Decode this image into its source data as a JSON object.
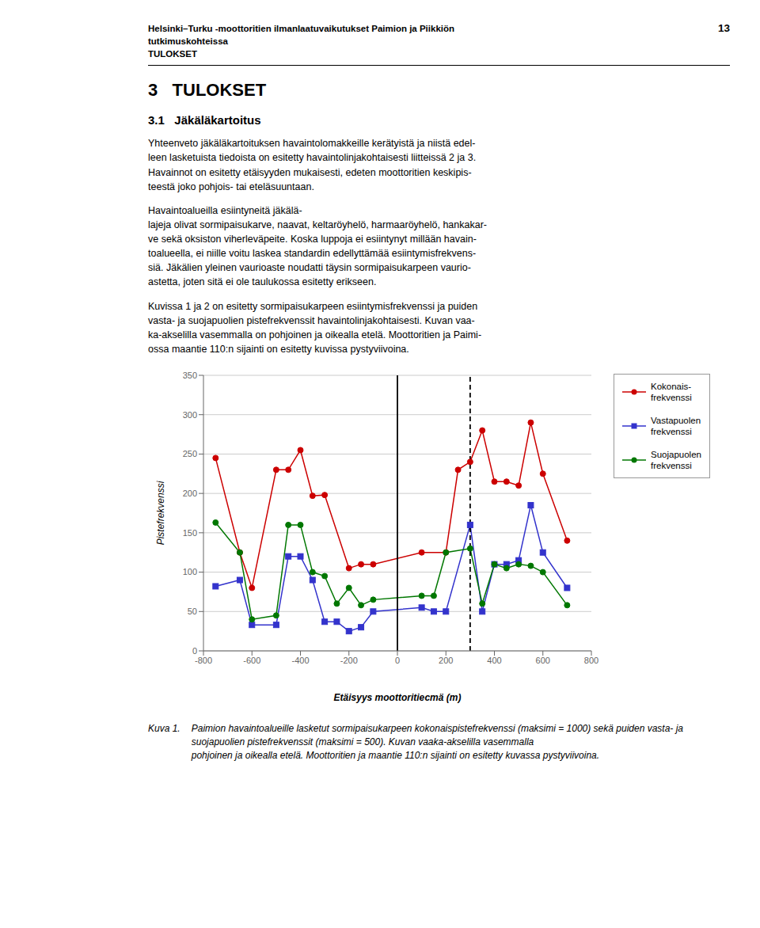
{
  "chart_data": {
    "type": "line",
    "xlabel": "Etäisyys moottoritiестä (m)",
    "ylabel": "Pistefrekvenssi",
    "xlim": [
      -800,
      800
    ],
    "ylim": [
      0,
      350
    ],
    "xticks": [
      -800,
      -600,
      -400,
      -200,
      0,
      200,
      400,
      600,
      800
    ],
    "yticks": [
      0,
      50,
      100,
      150,
      200,
      250,
      300,
      350
    ],
    "grid": "y",
    "legend": "right",
    "series": [
      {
        "name": "Kokonais-\nfrekvenssi",
        "color": "#cc0000",
        "marker": "circle",
        "x": [
          -750,
          -650,
          -600,
          -500,
          -450,
          -400,
          -350,
          -300,
          -200,
          -150,
          -100,
          100,
          200,
          250,
          300,
          350,
          400,
          450,
          500,
          550,
          600,
          700
        ],
        "values": [
          245,
          125,
          80,
          230,
          230,
          255,
          197,
          198,
          105,
          110,
          110,
          125,
          125,
          230,
          240,
          280,
          215,
          215,
          210,
          290,
          225,
          140
        ]
      },
      {
        "name": "Vastapuolen\nfrekvenssi",
        "color": "#3333cc",
        "marker": "square",
        "x": [
          -750,
          -650,
          -600,
          -500,
          -450,
          -400,
          -350,
          -300,
          -250,
          -200,
          -150,
          -100,
          100,
          150,
          200,
          300,
          350,
          400,
          450,
          500,
          550,
          600,
          700
        ],
        "values": [
          82,
          90,
          33,
          33,
          120,
          120,
          90,
          37,
          37,
          25,
          30,
          50,
          55,
          50,
          50,
          160,
          50,
          110,
          110,
          115,
          185,
          125,
          80
        ]
      },
      {
        "name": "Suojapuolen\nfrekvenssi",
        "color": "#007700",
        "marker": "circle",
        "x": [
          -750,
          -650,
          -600,
          -500,
          -450,
          -400,
          -350,
          -300,
          -250,
          -200,
          -150,
          -100,
          100,
          150,
          200,
          300,
          350,
          400,
          450,
          500,
          550,
          600,
          700
        ],
        "values": [
          163,
          125,
          40,
          45,
          160,
          160,
          100,
          95,
          60,
          80,
          58,
          65,
          70,
          70,
          125,
          130,
          60,
          110,
          105,
          110,
          108,
          100,
          58
        ]
      }
    ],
    "reference_lines": [
      {
        "x": 0,
        "color": "#000000",
        "line_style": "solid"
      },
      {
        "x": 300,
        "color": "#000000",
        "line_style": "dashed"
      }
    ],
    "annotations": [
      "Helsinki–Turku -moottoritien ilmanlaatuvaikutukset Paimion ja Piikkiön",
      "tutkimuskohteissa",
      "13",
      "TULOKSET",
      "3   TULOKSET",
      "3.1   Jäkäläkartoitus",
      "Yhteenveto jäkäläkartoituksen havaintolomakkeille kerätyistä ja niistä edel-\nleen lasketuista tiedoista on esitetty havaintolinjakohtaisesti liitteissä 2 ja 3.\nHavainnot on esitetty etäisyyden mukaisesti, edeten moottoritien keskipis-\nteestä joko pohjois- tai eteläsuuntaan.",
      "Havaintoalueilla esiintyneitä jäkälä-\nlajeja olivat sormipaisukarve, naavat, keltaröyhelö, harmaaröyhelö, hankakar-\nve sekä oksiston viherleväpeite. Koska luppoja ei esiintynyt millään havain-\ntoalueella, ei niille voitu laskea standardin edellyttämää esiintymisfrekvens-\nsiä. Jäkälien yleinen vaurioaste noudatti täysin sormipaisukarpeen vaurio-\nastetta, joten sitä ei ole taulukossa esitetty erikseen.",
      "Kuvissa 1 ja 2 on esitetty sormipaisukarpeen esiintymisfrekvenssi ja puiden\nvasta- ja suojapuolien pistefrekvenssit havaintolinjakohtaisesti. Kuvan vaa-\nka-akselilla vasemmalla on pohjoinen ja oikealla etelä. Moottoritien ja Paimi-\nossa maantie 110:n sijainti on esitetty kuvissa pystyviivoina.",
      "Kuva 1.",
      "Paimion havaintoalueille lasketut sormipaisukarpeen kokonaispistefrekvenssi (maksimi = 1000) sekä puiden vasta- ja suojapuolien pistefrekvenssit (maksimi = 500). Kuvan vaaka-akselilla vasemmalla\npohjoinen ja oikealla etelä. Moottoritien ja maantie 110:n sijainti on esitetty kuvassa pystyviivoina."
    ]
  }
}
